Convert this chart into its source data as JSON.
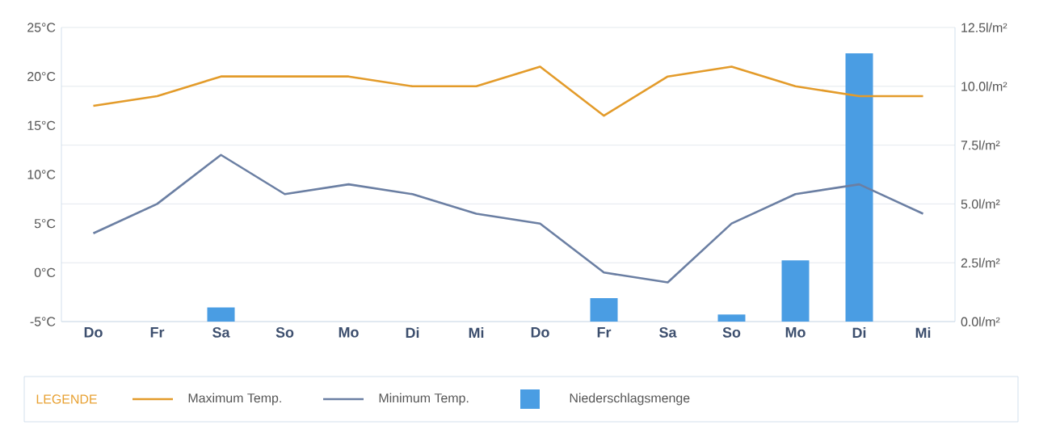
{
  "chart_data": {
    "type": "line",
    "categories": [
      "Do",
      "Fr",
      "Sa",
      "So",
      "Mo",
      "Di",
      "Mi",
      "Do",
      "Fr",
      "Sa",
      "So",
      "Mo",
      "Di",
      "Mi"
    ],
    "series": [
      {
        "name": "Maximum Temp.",
        "color": "#e39b2a",
        "values": [
          17,
          18,
          20,
          20,
          20,
          19,
          19,
          21,
          16,
          20,
          21,
          19,
          18,
          18
        ]
      },
      {
        "name": "Minimum Temp.",
        "color": "#6b7fa3",
        "values": [
          4,
          7,
          12,
          8,
          9,
          8,
          6,
          5,
          0,
          -1,
          5,
          8,
          9,
          6
        ]
      },
      {
        "name": "Niederschlagsmenge",
        "type": "bar",
        "axis": "y2",
        "color": "#4a9de3",
        "values": [
          null,
          null,
          0.6,
          null,
          null,
          null,
          null,
          null,
          1.0,
          null,
          0.3,
          2.6,
          11.4,
          null
        ]
      }
    ],
    "ylim": [
      -5,
      25
    ],
    "yticks": [
      {
        "value": -5,
        "label": "-5°C"
      },
      {
        "value": 0,
        "label": "0°C"
      },
      {
        "value": 5,
        "label": "5°C"
      },
      {
        "value": 10,
        "label": "10°C"
      },
      {
        "value": 15,
        "label": "15°C"
      },
      {
        "value": 20,
        "label": "20°C"
      },
      {
        "value": 25,
        "label": "25°C"
      }
    ],
    "y2lim": [
      0,
      12.5
    ],
    "y2ticks": [
      {
        "value": 0,
        "label": "0.0l/m²"
      },
      {
        "value": 2.5,
        "label": "2.5l/m²"
      },
      {
        "value": 5,
        "label": "5.0l/m²"
      },
      {
        "value": 7.5,
        "label": "7.5l/m²"
      },
      {
        "value": 10,
        "label": "10.0l/m²"
      },
      {
        "value": 12.5,
        "label": "12.5l/m²"
      }
    ],
    "grid": "y",
    "legend": "bottom",
    "legend_title": "LEGENDE",
    "marker": "none",
    "line_style": "solid"
  }
}
